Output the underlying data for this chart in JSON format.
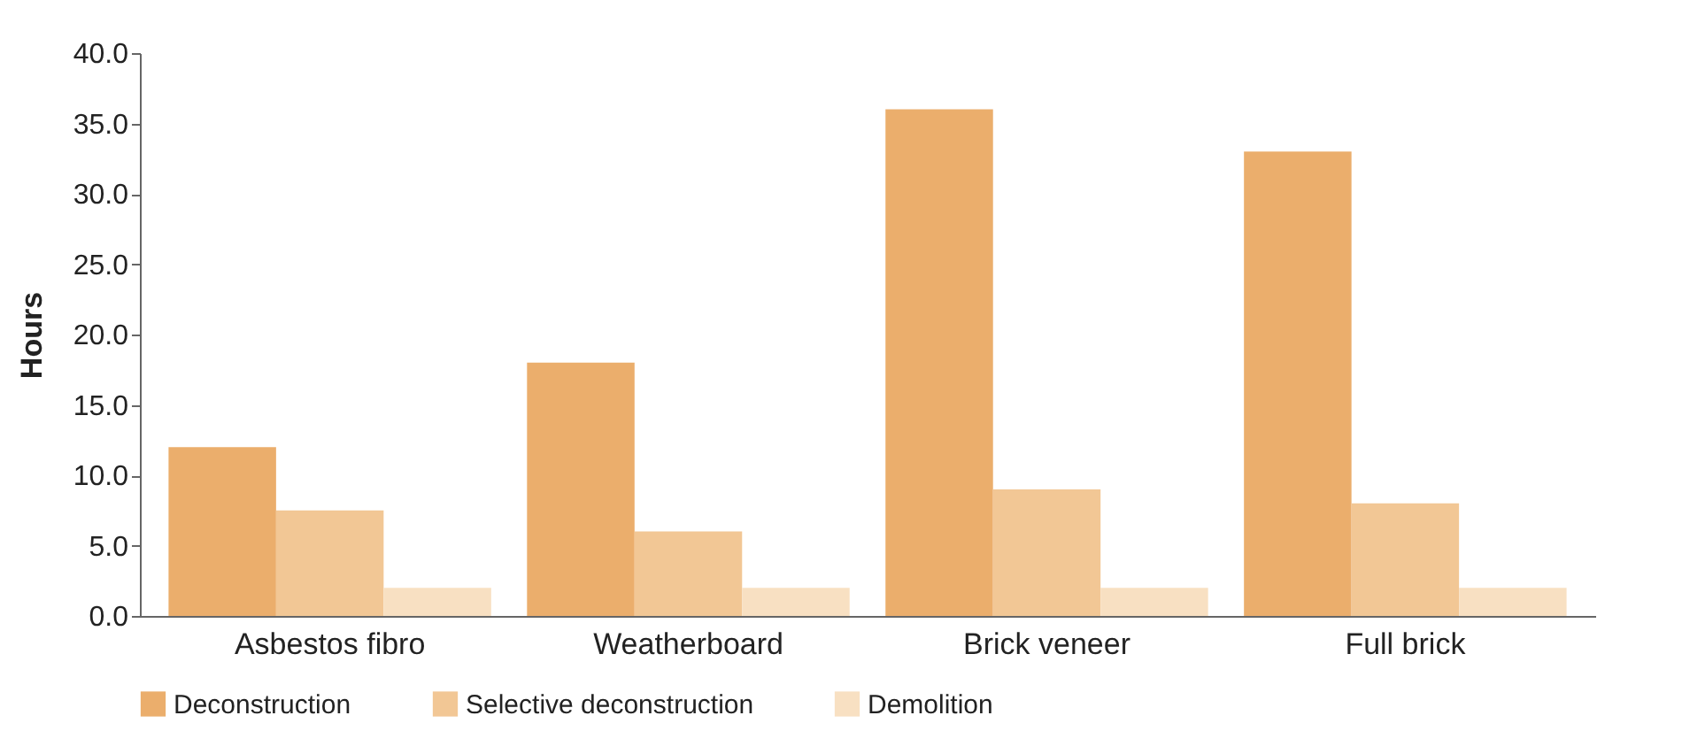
{
  "chart_data": {
    "type": "bar",
    "ylabel": "Hours",
    "categories": [
      "Asbestos fibro",
      "Weatherboard",
      "Brick veneer",
      "Full brick"
    ],
    "series": [
      {
        "name": "Deconstruction",
        "color": "#ebae6c",
        "values": [
          12,
          18,
          36,
          33
        ]
      },
      {
        "name": "Selective deconstruction",
        "color": "#f2c795",
        "values": [
          7.5,
          6,
          9,
          8
        ]
      },
      {
        "name": "Demolition",
        "color": "#f8e0c2",
        "values": [
          2,
          2,
          2,
          2
        ]
      }
    ],
    "ylim": [
      0,
      40
    ],
    "yticks": [
      {
        "value": 0,
        "label": "0.0"
      },
      {
        "value": 5,
        "label": "5.0"
      },
      {
        "value": 10,
        "label": "10.0"
      },
      {
        "value": 15,
        "label": "15.0"
      },
      {
        "value": 20,
        "label": "20.0"
      },
      {
        "value": 25,
        "label": "25.0"
      },
      {
        "value": 30,
        "label": "30.0"
      },
      {
        "value": 35,
        "label": "35.0"
      },
      {
        "value": 40,
        "label": "40.0"
      }
    ],
    "grid": false,
    "legend": "bottom"
  }
}
